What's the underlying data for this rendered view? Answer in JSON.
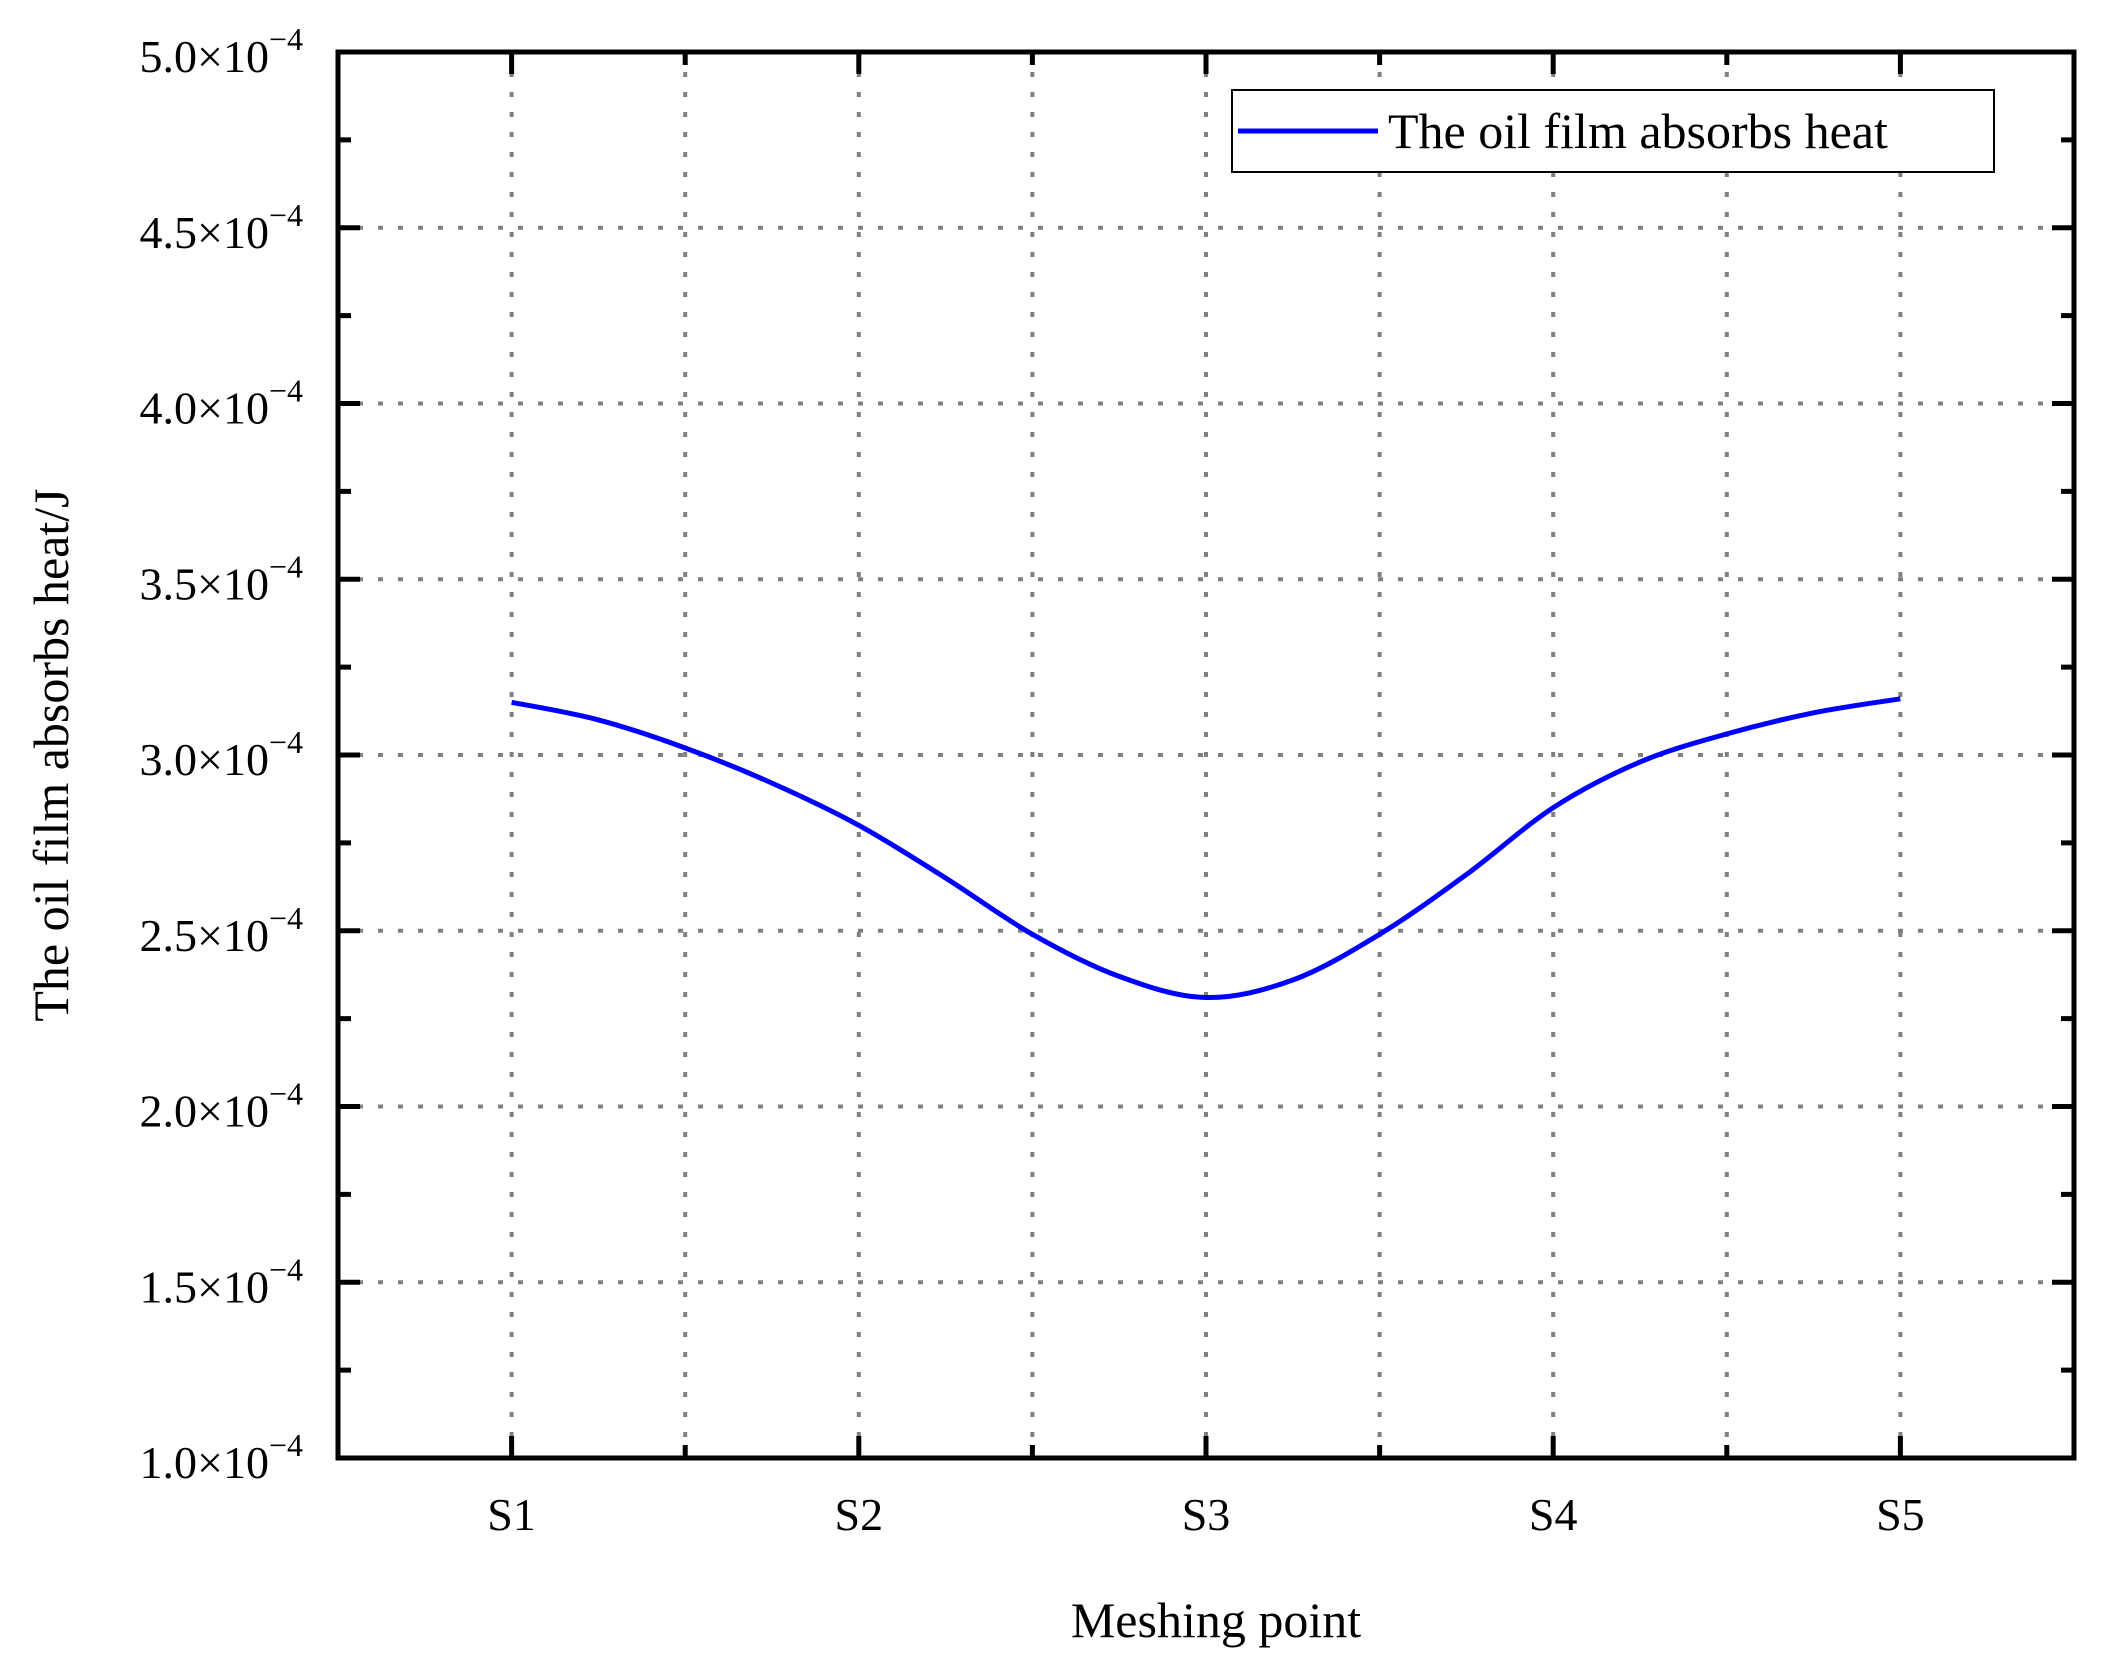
{
  "chart_data": {
    "type": "line",
    "xlabel": "Meshing point",
    "ylabel": "The oil film absorbs heat/J",
    "categories": [
      "S1",
      "S2",
      "S3",
      "S4",
      "S5"
    ],
    "x": [
      1,
      1.25,
      1.5,
      1.75,
      2,
      2.25,
      2.5,
      2.75,
      3,
      3.25,
      3.5,
      3.75,
      4,
      4.25,
      4.5,
      4.75,
      5
    ],
    "ylim": [
      0.0001,
      0.0005
    ],
    "yticks": [
      0.0001,
      0.00015,
      0.0002,
      0.00025,
      0.0003,
      0.00035,
      0.0004,
      0.00045,
      0.0005
    ],
    "ytick_labels": [
      {
        "mantissa": "1.0×10",
        "exp": "−4"
      },
      {
        "mantissa": "1.5×10",
        "exp": "−4"
      },
      {
        "mantissa": "2.0×10",
        "exp": "−4"
      },
      {
        "mantissa": "2.5×10",
        "exp": "−4"
      },
      {
        "mantissa": "3.0×10",
        "exp": "−4"
      },
      {
        "mantissa": "3.5×10",
        "exp": "−4"
      },
      {
        "mantissa": "4.0×10",
        "exp": "−4"
      },
      {
        "mantissa": "4.5×10",
        "exp": "−4"
      },
      {
        "mantissa": "5.0×10",
        "exp": "−4"
      }
    ],
    "grid": true,
    "legend_position": "top-right",
    "series": [
      {
        "name": "The oil film absorbs heat",
        "color": "#0000ff",
        "values": [
          0.000315,
          0.00031,
          0.000302,
          0.000292,
          0.00028,
          0.000265,
          0.000249,
          0.000237,
          0.000231,
          0.000236,
          0.000249,
          0.000266,
          0.000285,
          0.000298,
          0.000306,
          0.000312,
          0.000316
        ]
      }
    ]
  }
}
